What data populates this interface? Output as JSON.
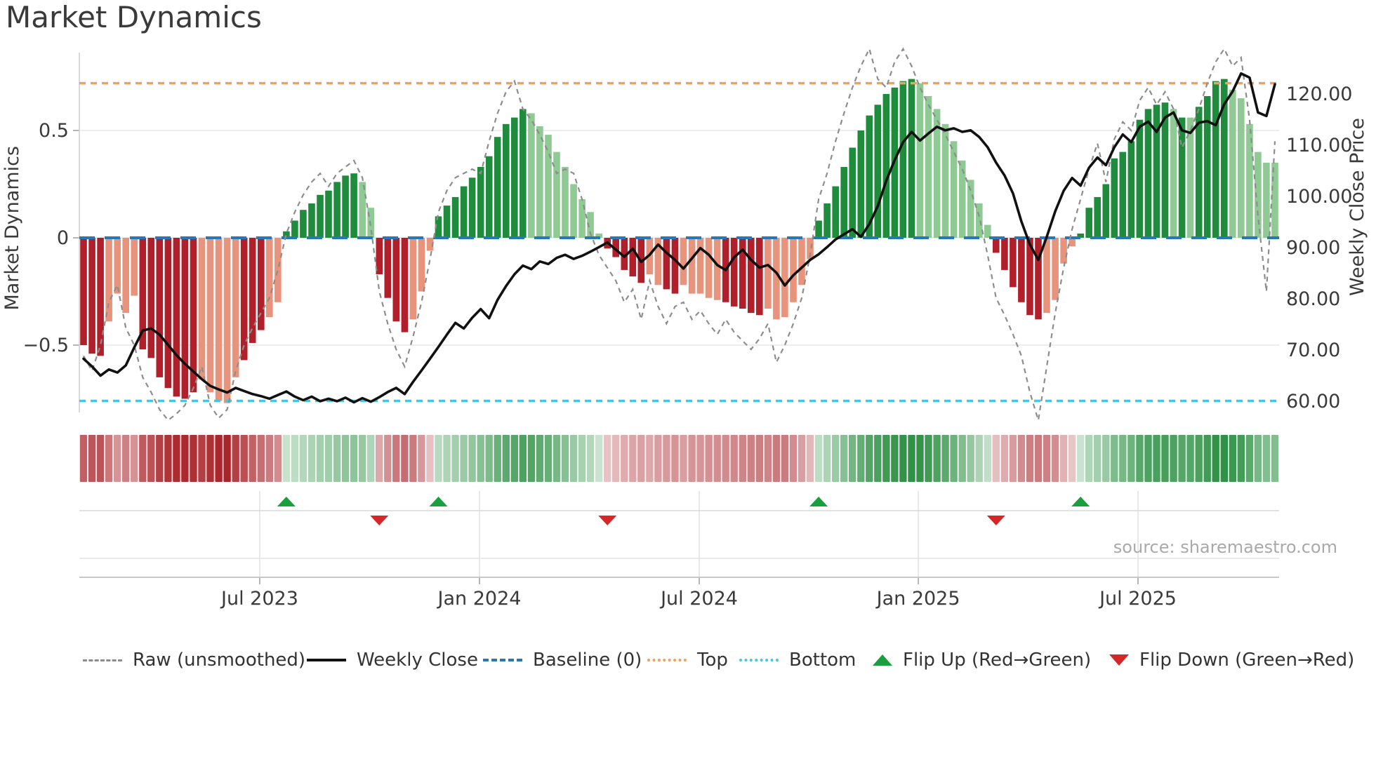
{
  "title": "Market Dynamics",
  "source": "source: sharemaestro.com",
  "axes": {
    "left_label": "Market Dynamics",
    "right_label": "Weekly Close Price",
    "left_ticks": [
      {
        "label": "0.5",
        "value": 0.5
      },
      {
        "label": "0",
        "value": 0
      },
      {
        "label": "−0.5",
        "value": -0.5
      }
    ],
    "right_ticks": [
      {
        "label": "120.00",
        "value": 120
      },
      {
        "label": "110.00",
        "value": 110
      },
      {
        "label": "100.00",
        "value": 100
      },
      {
        "label": "90.00",
        "value": 90
      },
      {
        "label": "80.00",
        "value": 80
      },
      {
        "label": "70.00",
        "value": 70
      },
      {
        "label": "60.00",
        "value": 60
      }
    ],
    "x_ticks": [
      {
        "label": "Jul 2023",
        "week": 21.35
      },
      {
        "label": "Jan 2024",
        "week": 47.36
      },
      {
        "label": "Jul 2024",
        "week": 73.37
      },
      {
        "label": "Jan 2025",
        "week": 99.3
      },
      {
        "label": "Jul 2025",
        "week": 125.3
      }
    ]
  },
  "legend": [
    {
      "label": "Raw (unsmoothed)",
      "type": "dashed-line",
      "color": "#8d8d8d"
    },
    {
      "label": "Weekly Close",
      "type": "solid-line",
      "color": "#111111"
    },
    {
      "label": "Baseline (0)",
      "type": "dashed-line",
      "color": "#2878b8"
    },
    {
      "label": "Top",
      "type": "dotted-line",
      "color": "#f2a05c"
    },
    {
      "label": "Bottom",
      "type": "dotted-line",
      "color": "#3fc9e6"
    },
    {
      "label": "Flip Up (Red→Green)",
      "type": "triangle-up",
      "color": "#1b9e3e"
    },
    {
      "label": "Flip Down (Green→Red)",
      "type": "triangle-down",
      "color": "#d62728"
    }
  ],
  "chart_data": {
    "type": "combo",
    "panels": [
      "oscillator-bars+price-lines",
      "heatmap-strip",
      "flip-marker-strip"
    ],
    "baseline": 0,
    "top_line": 0.72,
    "bottom_line": -0.76,
    "left_ylim": [
      -0.9,
      0.95
    ],
    "right_ylim": [
      55,
      127
    ],
    "bar_palette": {
      "dr": "#b1202a",
      "lr": "#e8947c",
      "dg": "#1f8b3d",
      "lg": "#8fc993"
    },
    "oscillator": {
      "values": [
        -0.5,
        -0.54,
        -0.55,
        -0.39,
        -0.26,
        -0.35,
        -0.27,
        -0.52,
        -0.56,
        -0.65,
        -0.7,
        -0.74,
        -0.75,
        -0.72,
        -0.66,
        -0.72,
        -0.76,
        -0.77,
        -0.65,
        -0.57,
        -0.49,
        -0.43,
        -0.37,
        -0.3,
        0.03,
        0.08,
        0.13,
        0.16,
        0.2,
        0.22,
        0.26,
        0.29,
        0.3,
        0.26,
        0.14,
        -0.17,
        -0.28,
        -0.39,
        -0.44,
        -0.38,
        -0.25,
        -0.06,
        0.1,
        0.15,
        0.19,
        0.24,
        0.28,
        0.33,
        0.38,
        0.47,
        0.53,
        0.56,
        0.6,
        0.58,
        0.52,
        0.48,
        0.4,
        0.33,
        0.25,
        0.18,
        0.12,
        0.02,
        -0.05,
        -0.09,
        -0.15,
        -0.18,
        -0.21,
        -0.17,
        -0.22,
        -0.24,
        -0.26,
        -0.22,
        -0.26,
        -0.26,
        -0.28,
        -0.29,
        -0.3,
        -0.32,
        -0.33,
        -0.35,
        -0.36,
        -0.33,
        -0.38,
        -0.37,
        -0.3,
        -0.22,
        -0.1,
        0.08,
        0.16,
        0.24,
        0.33,
        0.42,
        0.5,
        0.57,
        0.62,
        0.67,
        0.7,
        0.73,
        0.74,
        0.72,
        0.66,
        0.6,
        0.53,
        0.45,
        0.36,
        0.27,
        0.16,
        0.06,
        -0.07,
        -0.15,
        -0.23,
        -0.3,
        -0.36,
        -0.38,
        -0.35,
        -0.29,
        -0.12,
        -0.04,
        0.02,
        0.14,
        0.19,
        0.25,
        0.37,
        0.4,
        0.45,
        0.55,
        0.6,
        0.62,
        0.63,
        0.6,
        0.56,
        0.56,
        0.61,
        0.66,
        0.73,
        0.74,
        0.69,
        0.65,
        0.53,
        0.4,
        0.35,
        0.35
      ],
      "colors": "dr dr dr lr lr lr lr dr dr dr dr dr dr dr lr lr lr lr lr dr dr dr lr lr dg dg dg dg dg dg dg dg dg lg lg dr dr dr dr lr lr lr dg dg dg dg dg dg dg dg dg dg dg lg lg lg lg lg lg lg lg lg dr dr dr dr dr lr lr dr dr lr lr lr lr lr dr dr dr dr dr lr lr lr lr lr lr dg dg dg dg dg dg dg dg dg dg dg dg lg lg lg lg lg lg lg lg lg dr dr dr dr dr dr lr lr lr lr dg dg dg dg dg dg dg dg dg dg dg lg dg lg dg dg dg dg lg lg lg lg lg lg"
    },
    "weekly_close": [
      68.3,
      66.8,
      65.0,
      66.2,
      65.6,
      67.0,
      70.5,
      73.8,
      74.2,
      73.0,
      71.0,
      69.0,
      67.3,
      65.8,
      64.3,
      63.0,
      62.3,
      61.7,
      62.6,
      62.0,
      61.4,
      61.0,
      60.5,
      61.2,
      61.9,
      60.9,
      60.2,
      60.9,
      60.0,
      60.5,
      60.0,
      60.7,
      59.8,
      60.6,
      59.9,
      60.8,
      61.8,
      62.6,
      61.4,
      63.8,
      66.0,
      68.3,
      70.6,
      73.0,
      75.3,
      74.2,
      76.3,
      78.0,
      76.2,
      79.8,
      82.5,
      84.8,
      86.5,
      85.8,
      87.3,
      86.8,
      88.0,
      88.6,
      87.8,
      88.4,
      89.2,
      90.1,
      91.0,
      89.6,
      88.2,
      89.8,
      87.2,
      88.6,
      90.6,
      89.0,
      87.6,
      85.9,
      87.9,
      89.9,
      88.6,
      86.6,
      85.6,
      88.1,
      89.6,
      87.6,
      86.1,
      86.6,
      85.1,
      82.6,
      84.6,
      86.1,
      87.6,
      88.7,
      90.1,
      91.6,
      92.6,
      93.6,
      92.1,
      94.6,
      98.1,
      103.1,
      107.1,
      110.6,
      112.6,
      110.9,
      112.3,
      113.6,
      112.9,
      113.3,
      112.6,
      112.9,
      111.6,
      109.6,
      106.6,
      104.1,
      100.6,
      95.1,
      90.6,
      87.6,
      92.1,
      97.1,
      101.1,
      103.6,
      102.1,
      105.6,
      107.6,
      106.1,
      109.6,
      112.1,
      110.6,
      113.6,
      114.6,
      112.6,
      115.4,
      116.4,
      112.9,
      112.4,
      114.4,
      114.7,
      113.9,
      118.0,
      120.5,
      124.0,
      123.2,
      116.4,
      115.7,
      121.9
    ],
    "raw": [
      -0.55,
      -0.62,
      -0.5,
      -0.3,
      -0.22,
      -0.42,
      -0.5,
      -0.65,
      -0.72,
      -0.8,
      -0.85,
      -0.82,
      -0.78,
      -0.7,
      -0.6,
      -0.78,
      -0.84,
      -0.8,
      -0.62,
      -0.5,
      -0.42,
      -0.35,
      -0.28,
      -0.15,
      0.02,
      0.12,
      0.2,
      0.26,
      0.3,
      0.24,
      0.3,
      0.33,
      0.36,
      0.28,
      0.05,
      -0.25,
      -0.4,
      -0.52,
      -0.6,
      -0.46,
      -0.3,
      -0.1,
      0.12,
      0.22,
      0.28,
      0.3,
      0.32,
      0.3,
      0.45,
      0.58,
      0.68,
      0.73,
      0.6,
      0.55,
      0.48,
      0.4,
      0.3,
      0.32,
      0.3,
      0.18,
      0.02,
      -0.08,
      -0.14,
      -0.2,
      -0.3,
      -0.24,
      -0.38,
      -0.2,
      -0.32,
      -0.4,
      -0.32,
      -0.3,
      -0.38,
      -0.34,
      -0.4,
      -0.45,
      -0.38,
      -0.44,
      -0.48,
      -0.52,
      -0.47,
      -0.4,
      -0.58,
      -0.5,
      -0.4,
      -0.28,
      -0.08,
      0.18,
      0.3,
      0.45,
      0.58,
      0.7,
      0.8,
      0.88,
      0.74,
      0.7,
      0.82,
      0.88,
      0.8,
      0.7,
      0.62,
      0.55,
      0.48,
      0.4,
      0.32,
      0.22,
      0.1,
      -0.08,
      -0.28,
      -0.36,
      -0.45,
      -0.55,
      -0.72,
      -0.85,
      -0.6,
      -0.35,
      -0.14,
      0.04,
      0.18,
      0.32,
      0.44,
      0.26,
      0.46,
      0.54,
      0.5,
      0.64,
      0.7,
      0.62,
      0.68,
      0.6,
      0.42,
      0.5,
      0.6,
      0.72,
      0.82,
      0.88,
      0.8,
      0.84,
      0.55,
      0.1,
      -0.25,
      0.45
    ],
    "flip_markers": [
      {
        "dir": "up",
        "week": 24
      },
      {
        "dir": "down",
        "week": 35
      },
      {
        "dir": "up",
        "week": 42
      },
      {
        "dir": "down",
        "week": 62
      },
      {
        "dir": "up",
        "week": 87
      },
      {
        "dir": "down",
        "week": 108
      },
      {
        "dir": "up",
        "week": 118
      }
    ]
  }
}
